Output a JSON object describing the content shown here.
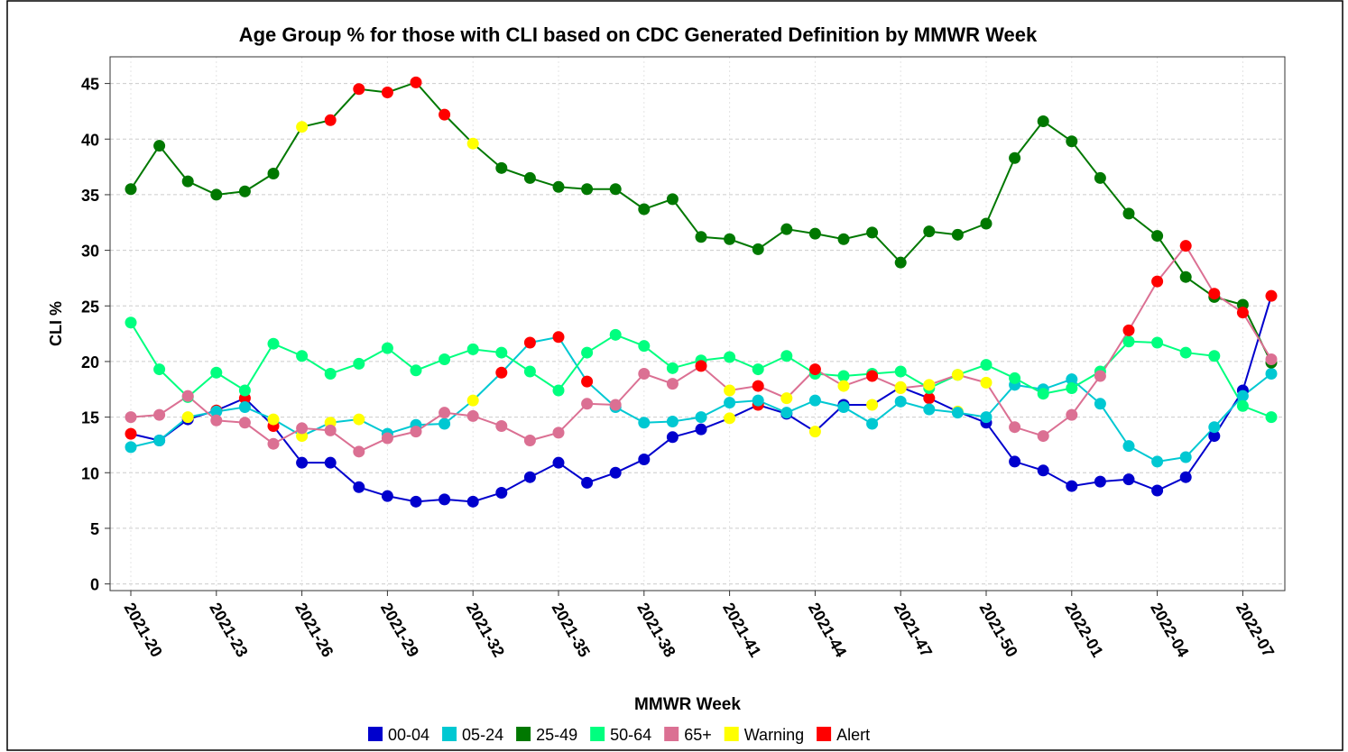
{
  "chart_data": {
    "type": "line",
    "title": "Age Group % for those with CLI based on CDC Generated Definition by MMWR Week",
    "x_label": "MMWR Week",
    "y_label": "CLI %",
    "categories": [
      "2021-20",
      null,
      null,
      "2021-23",
      null,
      null,
      "2021-26",
      null,
      null,
      "2021-29",
      null,
      null,
      "2021-32",
      null,
      null,
      "2021-35",
      null,
      null,
      "2021-38",
      null,
      null,
      "2021-41",
      null,
      null,
      "2021-44",
      null,
      null,
      "2021-47",
      null,
      null,
      "2021-50",
      null,
      null,
      "2022-01",
      null,
      null,
      "2022-04",
      null,
      null,
      "2022-07",
      null
    ],
    "ylim": [
      -0.6,
      47.4
    ],
    "yticks": [
      0,
      5,
      10,
      15,
      20,
      25,
      30,
      35,
      40,
      45
    ],
    "grid": true,
    "markers": [
      {
        "name": "Warning",
        "color": "#ffff00"
      },
      {
        "name": "Alert",
        "color": "#ff0000"
      }
    ],
    "series": [
      {
        "name": "00-04",
        "color": "#0000cd",
        "values": [
          13.5,
          12.9,
          14.8,
          15.6,
          16.7,
          14.2,
          10.9,
          10.9,
          8.7,
          7.9,
          7.4,
          7.6,
          7.4,
          8.2,
          9.6,
          10.9,
          9.1,
          10.0,
          11.2,
          13.2,
          13.9,
          14.9,
          16.1,
          15.3,
          13.7,
          16.1,
          16.1,
          17.7,
          16.7,
          15.5,
          14.5,
          11.0,
          10.2,
          8.8,
          9.2,
          9.4,
          8.4,
          9.6,
          13.3,
          17.4,
          25.9
        ],
        "status": [
          "Alert",
          null,
          null,
          "Alert",
          "Alert",
          "Alert",
          null,
          null,
          null,
          null,
          null,
          null,
          null,
          null,
          null,
          null,
          null,
          null,
          null,
          null,
          null,
          "Warning",
          "Alert",
          null,
          "Warning",
          null,
          "Warning",
          "Warning",
          "Alert",
          "Warning",
          null,
          null,
          null,
          null,
          null,
          null,
          null,
          null,
          null,
          null,
          "Alert"
        ]
      },
      {
        "name": "05-24",
        "color": "#00c8d2",
        "values": [
          12.3,
          12.9,
          15.0,
          15.5,
          15.9,
          14.8,
          13.3,
          14.5,
          14.8,
          13.5,
          14.3,
          14.4,
          16.5,
          19.0,
          21.7,
          22.2,
          18.2,
          15.9,
          14.5,
          14.6,
          15.0,
          16.3,
          16.5,
          15.4,
          16.5,
          15.9,
          14.4,
          16.4,
          15.7,
          15.4,
          15.0,
          17.9,
          17.5,
          18.4,
          16.2,
          12.4,
          11.0,
          11.4,
          14.1,
          16.9,
          18.9
        ],
        "status": [
          null,
          null,
          "Warning",
          null,
          null,
          "Warning",
          "Warning",
          "Warning",
          "Warning",
          null,
          null,
          null,
          "Warning",
          "Alert",
          "Alert",
          "Alert",
          "Alert",
          null,
          null,
          null,
          null,
          null,
          null,
          null,
          null,
          null,
          null,
          null,
          null,
          null,
          null,
          null,
          null,
          null,
          null,
          null,
          null,
          null,
          null,
          null,
          null
        ]
      },
      {
        "name": "25-49",
        "color": "#007800",
        "values": [
          35.5,
          39.4,
          36.2,
          35.0,
          35.3,
          36.9,
          41.1,
          41.7,
          44.5,
          44.2,
          45.1,
          42.2,
          39.6,
          37.4,
          36.5,
          35.7,
          35.5,
          35.5,
          33.7,
          34.6,
          31.2,
          31.0,
          30.1,
          31.9,
          31.5,
          31.0,
          31.6,
          28.9,
          31.7,
          31.4,
          32.4,
          38.3,
          41.6,
          39.8,
          36.5,
          33.3,
          31.3,
          27.6,
          25.8,
          25.1,
          19.9
        ],
        "status": [
          null,
          null,
          null,
          null,
          null,
          null,
          "Warning",
          "Alert",
          "Alert",
          "Alert",
          "Alert",
          "Alert",
          "Warning",
          null,
          null,
          null,
          null,
          null,
          null,
          null,
          null,
          null,
          null,
          null,
          null,
          null,
          null,
          null,
          null,
          null,
          null,
          null,
          null,
          null,
          null,
          null,
          null,
          null,
          null,
          null,
          null
        ]
      },
      {
        "name": "50-64",
        "color": "#00ff7f",
        "values": [
          23.5,
          19.3,
          16.8,
          19.0,
          17.4,
          21.6,
          20.5,
          18.9,
          19.8,
          21.2,
          19.2,
          20.2,
          21.1,
          20.8,
          19.1,
          17.4,
          20.8,
          22.4,
          21.4,
          19.4,
          20.1,
          20.4,
          19.3,
          20.5,
          18.9,
          18.7,
          18.9,
          19.1,
          17.6,
          18.8,
          19.7,
          18.5,
          17.1,
          17.6,
          19.1,
          21.8,
          21.7,
          20.8,
          20.5,
          16.0,
          15.0
        ],
        "status": [
          null,
          null,
          null,
          null,
          null,
          null,
          null,
          null,
          null,
          null,
          null,
          null,
          null,
          null,
          null,
          null,
          null,
          null,
          null,
          null,
          null,
          null,
          null,
          null,
          null,
          null,
          null,
          null,
          null,
          null,
          null,
          null,
          null,
          null,
          null,
          null,
          null,
          null,
          null,
          null,
          null
        ]
      },
      {
        "name": "65+",
        "color": "#db7093",
        "values": [
          15.0,
          15.2,
          16.9,
          14.7,
          14.5,
          12.6,
          14.0,
          13.8,
          11.9,
          13.1,
          13.7,
          15.4,
          15.1,
          14.2,
          12.9,
          13.6,
          16.2,
          16.1,
          18.9,
          18.0,
          19.6,
          17.4,
          17.8,
          16.7,
          19.3,
          17.8,
          18.7,
          17.6,
          17.9,
          18.8,
          18.1,
          14.1,
          13.3,
          15.2,
          18.7,
          22.8,
          27.2,
          30.4,
          26.1,
          24.4,
          20.2
        ],
        "status": [
          null,
          null,
          null,
          null,
          null,
          null,
          null,
          null,
          null,
          null,
          null,
          null,
          null,
          null,
          null,
          null,
          null,
          null,
          null,
          null,
          "Alert",
          "Warning",
          "Alert",
          "Warning",
          "Alert",
          "Warning",
          "Alert",
          "Warning",
          "Warning",
          "Warning",
          "Warning",
          null,
          null,
          null,
          null,
          "Alert",
          "Alert",
          "Alert",
          "Alert",
          "Alert",
          null
        ]
      }
    ]
  }
}
